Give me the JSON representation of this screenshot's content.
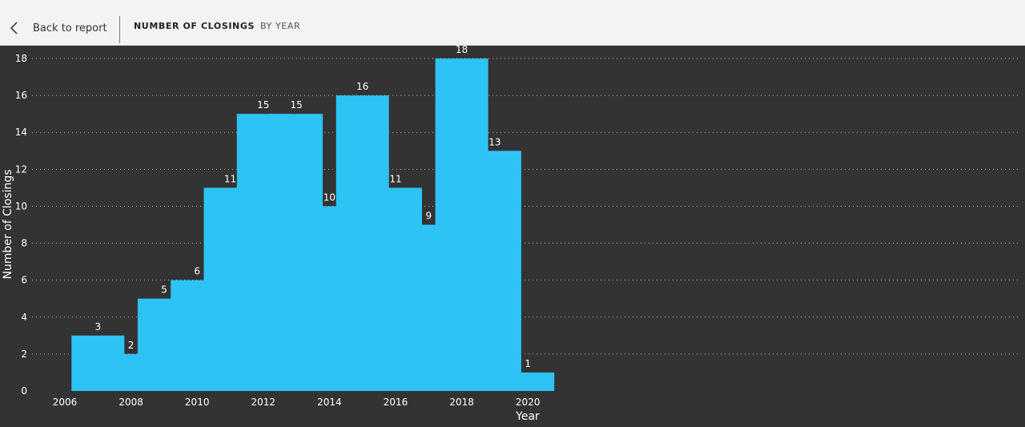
{
  "nav": {
    "back_label": "Back to report",
    "title": "NUMBER OF CLOSINGS",
    "subtitle": "BY YEAR"
  },
  "colors": {
    "bar": "#2ec3f5",
    "background": "#333333"
  },
  "chart_data": {
    "type": "bar",
    "x": [
      2007,
      2008,
      2009,
      2010,
      2011,
      2012,
      2013,
      2014,
      2015,
      2016,
      2017,
      2018,
      2019,
      2020
    ],
    "values": [
      3,
      2,
      5,
      6,
      11,
      15,
      15,
      10,
      16,
      11,
      9,
      18,
      13,
      1
    ],
    "xlabel": "Year",
    "ylabel": "Number of Closings",
    "xticks": [
      2006,
      2008,
      2010,
      2012,
      2014,
      2016,
      2018,
      2020
    ],
    "yticks": [
      0,
      2,
      4,
      6,
      8,
      10,
      12,
      14,
      16,
      18
    ],
    "ylim": [
      0,
      18
    ],
    "data_labels": true,
    "grid": "horizontal dotted"
  }
}
